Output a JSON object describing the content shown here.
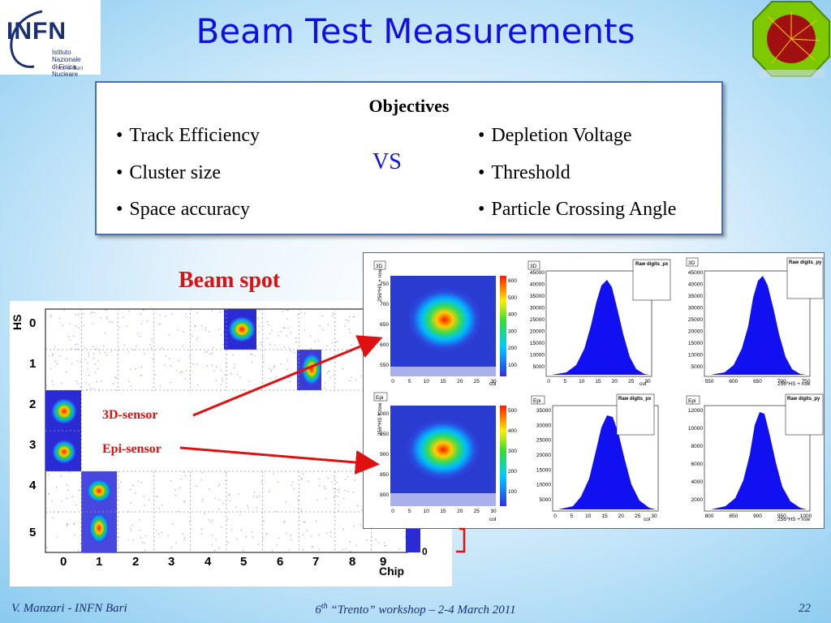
{
  "logo": {
    "mark": "INFN",
    "line1": "Istituto Nazionale",
    "line2": "di Fisica Nucleare",
    "sez": "Sez. di Bari"
  },
  "title": "Beam Test Measurements",
  "objectives": {
    "heading": "Objectives",
    "left": [
      "Track Efficiency",
      "Cluster size",
      "Space accuracy"
    ],
    "vs": "VS",
    "right": [
      "Depletion Voltage",
      "Threshold",
      "Particle Crossing Angle"
    ]
  },
  "beam_spot_label": "Beam spot",
  "beam_plot": {
    "ylabel": "HS",
    "xlabel": "Chip",
    "y_ticks": [
      "0",
      "1",
      "2",
      "3",
      "4",
      "5"
    ],
    "x_ticks": [
      "0",
      "1",
      "2",
      "3",
      "4",
      "5",
      "6",
      "7",
      "8",
      "9"
    ],
    "zscale_tick": "0",
    "sensor_3d": "3D-sensor",
    "sensor_epi": "Epi-sensor"
  },
  "inset": {
    "panel_3d_tag": "3D",
    "panel_epi_tag": "Epi",
    "map_ylabel": "256*HS + row",
    "map_xlabel": "col",
    "hist_px_title": "Raw digits_px",
    "hist_py_title": "Raw digits_py",
    "hist_py_xlabel": "256*HS + row",
    "hist_px_xlabel": "col",
    "map3d_yticks": [
      "750",
      "700",
      "650",
      "600",
      "550"
    ],
    "map3d_xticks": [
      "0",
      "5",
      "10",
      "15",
      "20",
      "25",
      "30"
    ],
    "map3d_zticks": [
      "600",
      "500",
      "400",
      "300",
      "200",
      "100"
    ],
    "mapepi_yticks": [
      "1000",
      "950",
      "900",
      "850",
      "800"
    ],
    "mapepi_xticks": [
      "0",
      "5",
      "10",
      "15",
      "20",
      "25",
      "30"
    ],
    "mapepi_zticks": [
      "500",
      "400",
      "300",
      "200",
      "100"
    ],
    "h3dpx_yticks": [
      "45000",
      "40000",
      "35000",
      "30000",
      "25000",
      "20000",
      "15000",
      "10000",
      "5000"
    ],
    "h3dpx_xticks": [
      "0",
      "5",
      "10",
      "15",
      "20",
      "25",
      "30"
    ],
    "h3dpy_yticks": [
      "45000",
      "40000",
      "35000",
      "30000",
      "25000",
      "20000",
      "15000",
      "10000",
      "5000"
    ],
    "h3dpy_xticks": [
      "550",
      "600",
      "650",
      "700",
      "750"
    ],
    "hepipx_yticks": [
      "35000",
      "30000",
      "25000",
      "20000",
      "15000",
      "10000",
      "5000"
    ],
    "hepipx_xticks": [
      "0",
      "5",
      "10",
      "15",
      "20",
      "25",
      "30"
    ],
    "hepipy_yticks": [
      "12000",
      "10000",
      "8000",
      "6000",
      "4000",
      "2000"
    ],
    "hepipy_xticks": [
      "800",
      "850",
      "900",
      "950",
      "1000"
    ]
  },
  "footer": {
    "left": "V. Manzari - INFN Bari",
    "center_pre": "6",
    "center_sup": "th",
    "center_post": " “Trento” workshop – 2-4 March 2011",
    "page": "22"
  },
  "colors": {
    "title": "#1010e0",
    "accent_red": "#e01010",
    "box_border": "#4a6fb8"
  }
}
